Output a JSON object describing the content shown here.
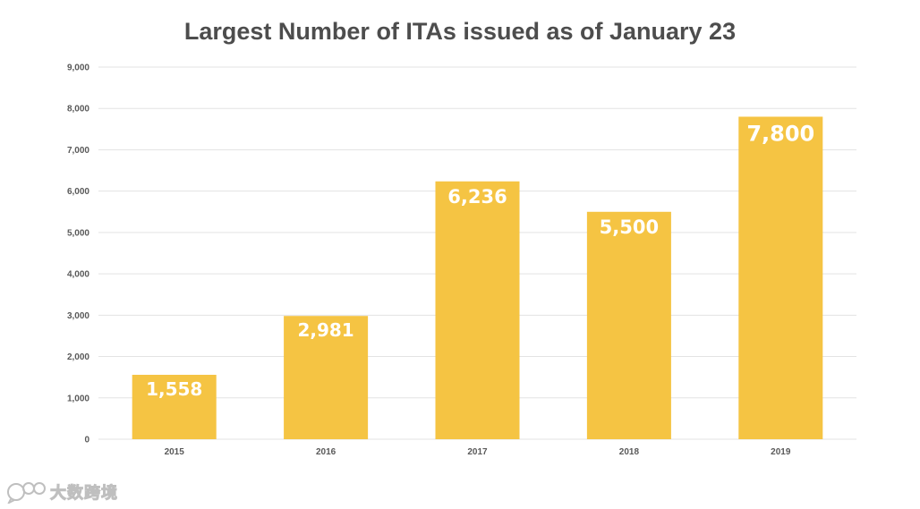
{
  "chart_data": {
    "type": "bar",
    "title": "Largest Number of ITAs issued as of January 23",
    "xlabel": "",
    "ylabel": "",
    "categories": [
      "2015",
      "2016",
      "2017",
      "2018",
      "2019"
    ],
    "values": [
      1558,
      2981,
      6236,
      5500,
      7800
    ],
    "value_labels": [
      "1,558",
      "2,981",
      "6,236",
      "5,500",
      "7,800"
    ],
    "ylim": [
      0,
      9000
    ],
    "yticks": [
      0,
      1000,
      2000,
      3000,
      4000,
      5000,
      6000,
      7000,
      8000,
      9000
    ],
    "ytick_labels": [
      "0",
      "1,000",
      "2,000",
      "3,000",
      "4,000",
      "5,000",
      "6,000",
      "7,000",
      "8,000",
      "9,000"
    ],
    "grid": true,
    "legend": "none",
    "colors": {
      "bar": "#f5c443",
      "grid": "#e3e3e3",
      "tick_text": "#595959",
      "title_text": "#4d4d4d",
      "data_label": "#ffffff"
    }
  },
  "watermark": {
    "text": "大数跨境",
    "icon": "chat-bubbles-logo-icon"
  }
}
